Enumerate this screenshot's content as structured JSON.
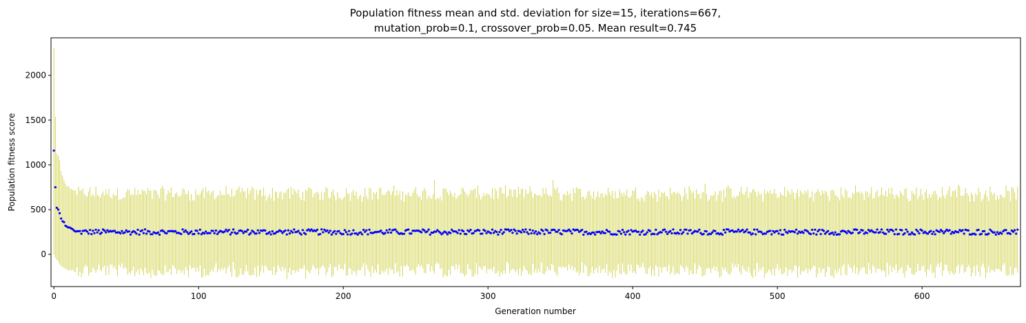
{
  "chart_data": {
    "type": "scatter",
    "title_line1": "Population fitness mean and std. deviation for size=15, iterations=667,",
    "title_line2": "mutation_prob=0.1, crossover_prob=0.05. Mean result=0.745",
    "xlabel": "Generation number",
    "ylabel": "Population fitness score",
    "xlim": [
      -2,
      668
    ],
    "ylim": [
      -360,
      2420
    ],
    "x_ticks": [
      0,
      100,
      200,
      300,
      400,
      500,
      600
    ],
    "y_ticks": [
      0,
      500,
      1000,
      1500,
      2000
    ],
    "grid": false,
    "series": [
      {
        "kind": "error_bars",
        "color": "#bfbf00",
        "description_points": "mean ± std per generation",
        "n_generations": 667,
        "early": [
          {
            "x": 0,
            "mean": 1160,
            "low": 0,
            "high": 2310
          },
          {
            "x": 1,
            "mean": 750,
            "low": -40,
            "high": 1540
          },
          {
            "x": 2,
            "mean": 520,
            "low": -60,
            "high": 1130
          },
          {
            "x": 3,
            "mean": 500,
            "low": -80,
            "high": 1100
          },
          {
            "x": 4,
            "mean": 460,
            "low": -110,
            "high": 1050
          },
          {
            "x": 5,
            "mean": 400,
            "low": -130,
            "high": 930
          },
          {
            "x": 6,
            "mean": 370,
            "low": -140,
            "high": 880
          },
          {
            "x": 7,
            "mean": 360,
            "low": -150,
            "high": 830
          },
          {
            "x": 8,
            "mean": 320,
            "low": -160,
            "high": 790
          },
          {
            "x": 9,
            "mean": 310,
            "low": -170,
            "high": 760
          },
          {
            "x": 10,
            "mean": 300,
            "low": -180,
            "high": 760
          },
          {
            "x": 11,
            "mean": 300,
            "low": -170,
            "high": 740
          },
          {
            "x": 12,
            "mean": 290,
            "low": -180,
            "high": 730
          },
          {
            "x": 13,
            "mean": 280,
            "low": -170,
            "high": 720
          },
          {
            "x": 14,
            "mean": 265,
            "low": -190,
            "high": 720
          },
          {
            "x": 15,
            "mean": 255,
            "low": -200,
            "high": 710
          }
        ],
        "steady_state": {
          "mean_center": 250,
          "mean_jitter": 30,
          "std_center": 430,
          "std_jitter": 70
        },
        "peaks": [
          {
            "x": 263,
            "high": 830
          },
          {
            "x": 345,
            "high": 830
          },
          {
            "x": 450,
            "high": 790
          },
          {
            "x": 625,
            "high": 780
          }
        ]
      },
      {
        "kind": "mean_points",
        "color": "#0000ff"
      }
    ]
  }
}
